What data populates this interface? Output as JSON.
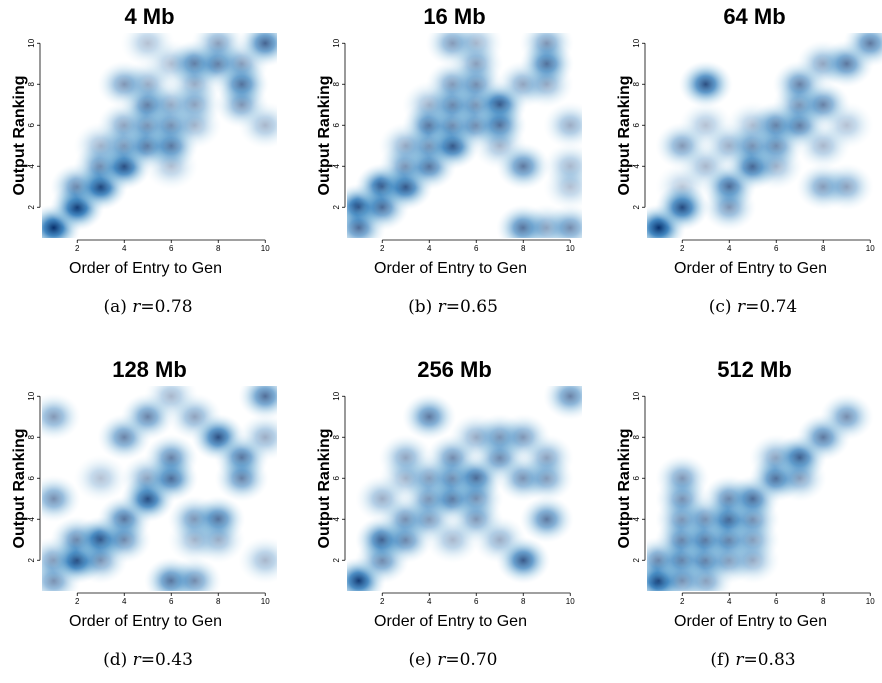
{
  "axis_labels": {
    "x": "Order of Entry to Gen",
    "y": "Output Ranking"
  },
  "chart_data": [
    {
      "type": "heatmap",
      "title": "4 Mb",
      "caption_prefix": "(a)",
      "caption_var": "r",
      "caption_value": "=0.78",
      "xlabel": "Order of Entry to Gen",
      "ylabel": "Output Ranking",
      "xlim": [
        0.5,
        10.5
      ],
      "ylim": [
        0.5,
        10.5
      ],
      "xticks": [
        2,
        4,
        6,
        8,
        10
      ],
      "yticks": [
        2,
        4,
        6,
        8,
        10
      ],
      "points": [
        [
          1,
          1,
          1.0
        ],
        [
          2,
          2,
          1.0
        ],
        [
          2,
          3,
          0.6
        ],
        [
          3,
          3,
          0.95
        ],
        [
          3,
          4,
          0.6
        ],
        [
          4,
          4,
          0.9
        ],
        [
          4,
          5,
          0.55
        ],
        [
          4,
          6,
          0.45
        ],
        [
          5,
          5,
          0.7
        ],
        [
          5,
          6,
          0.55
        ],
        [
          5,
          7,
          0.65
        ],
        [
          5,
          8,
          0.4
        ],
        [
          4,
          8,
          0.5
        ],
        [
          6,
          5,
          0.7
        ],
        [
          6,
          6,
          0.55
        ],
        [
          6,
          7,
          0.4
        ],
        [
          6,
          4,
          0.3
        ],
        [
          7,
          9,
          0.7
        ],
        [
          7,
          8,
          0.4
        ],
        [
          7,
          7,
          0.45
        ],
        [
          8,
          9,
          0.65
        ],
        [
          8,
          10,
          0.45
        ],
        [
          9,
          8,
          0.75
        ],
        [
          9,
          7,
          0.5
        ],
        [
          9,
          9,
          0.45
        ],
        [
          10,
          10,
          0.75
        ],
        [
          10,
          6,
          0.35
        ],
        [
          5,
          10,
          0.3
        ],
        [
          6,
          9,
          0.3
        ],
        [
          7,
          6,
          0.35
        ],
        [
          3,
          5,
          0.35
        ]
      ]
    },
    {
      "type": "heatmap",
      "title": "16 Mb",
      "caption_prefix": "(b)",
      "caption_var": "r",
      "caption_value": "=0.65",
      "xlabel": "Order of Entry to Gen",
      "ylabel": "Output Ranking",
      "xlim": [
        0.5,
        10.5
      ],
      "ylim": [
        0.5,
        10.5
      ],
      "xticks": [
        2,
        4,
        6,
        8,
        10
      ],
      "yticks": [
        2,
        4,
        6,
        8,
        10
      ],
      "points": [
        [
          1,
          2,
          0.95
        ],
        [
          1,
          1,
          0.7
        ],
        [
          2,
          3,
          0.9
        ],
        [
          2,
          2,
          0.7
        ],
        [
          3,
          3,
          0.85
        ],
        [
          3,
          4,
          0.55
        ],
        [
          4,
          4,
          0.7
        ],
        [
          4,
          5,
          0.6
        ],
        [
          4,
          6,
          0.7
        ],
        [
          5,
          5,
          0.85
        ],
        [
          5,
          6,
          0.6
        ],
        [
          5,
          7,
          0.65
        ],
        [
          5,
          8,
          0.5
        ],
        [
          5,
          10,
          0.5
        ],
        [
          6,
          6,
          0.6
        ],
        [
          6,
          7,
          0.55
        ],
        [
          6,
          8,
          0.55
        ],
        [
          6,
          10,
          0.35
        ],
        [
          7,
          7,
          0.85
        ],
        [
          7,
          6,
          0.7
        ],
        [
          7,
          5,
          0.35
        ],
        [
          8,
          4,
          0.65
        ],
        [
          8,
          8,
          0.45
        ],
        [
          8,
          1,
          0.7
        ],
        [
          9,
          9,
          0.75
        ],
        [
          9,
          10,
          0.5
        ],
        [
          9,
          8,
          0.4
        ],
        [
          9,
          1,
          0.45
        ],
        [
          10,
          6,
          0.4
        ],
        [
          10,
          4,
          0.35
        ],
        [
          10,
          3,
          0.3
        ],
        [
          10,
          1,
          0.55
        ],
        [
          3,
          5,
          0.4
        ],
        [
          6,
          9,
          0.45
        ],
        [
          4,
          7,
          0.35
        ]
      ]
    },
    {
      "type": "heatmap",
      "title": "64 Mb",
      "caption_prefix": "(c)",
      "caption_var": "r",
      "caption_value": "=0.74",
      "xlabel": "Order of Entry to Gen",
      "ylabel": "Output Ranking",
      "xlim": [
        0.5,
        10.5
      ],
      "ylim": [
        0.5,
        10.5
      ],
      "xticks": [
        2,
        4,
        6,
        8,
        10
      ],
      "yticks": [
        2,
        4,
        6,
        8,
        10
      ],
      "points": [
        [
          1,
          1,
          1.0
        ],
        [
          2,
          2,
          0.9
        ],
        [
          2,
          5,
          0.5
        ],
        [
          3,
          8,
          0.85
        ],
        [
          3,
          4,
          0.35
        ],
        [
          3,
          6,
          0.3
        ],
        [
          4,
          3,
          0.75
        ],
        [
          4,
          2,
          0.5
        ],
        [
          4,
          5,
          0.4
        ],
        [
          5,
          4,
          0.8
        ],
        [
          5,
          5,
          0.55
        ],
        [
          6,
          5,
          0.6
        ],
        [
          6,
          6,
          0.65
        ],
        [
          7,
          6,
          0.65
        ],
        [
          7,
          7,
          0.55
        ],
        [
          7,
          8,
          0.6
        ],
        [
          8,
          7,
          0.6
        ],
        [
          8,
          9,
          0.45
        ],
        [
          8,
          3,
          0.5
        ],
        [
          9,
          9,
          0.65
        ],
        [
          9,
          3,
          0.45
        ],
        [
          10,
          10,
          0.65
        ],
        [
          6,
          4,
          0.35
        ],
        [
          8,
          5,
          0.35
        ],
        [
          9,
          6,
          0.3
        ],
        [
          5,
          6,
          0.3
        ],
        [
          2,
          3,
          0.25
        ]
      ]
    },
    {
      "type": "heatmap",
      "title": "128 Mb",
      "caption_prefix": "(d)",
      "caption_var": "r",
      "caption_value": "=0.43",
      "xlabel": "Order of Entry to Gen",
      "ylabel": "Output Ranking",
      "xlim": [
        0.5,
        10.5
      ],
      "ylim": [
        0.5,
        10.5
      ],
      "xticks": [
        2,
        4,
        6,
        8,
        10
      ],
      "yticks": [
        2,
        4,
        6,
        8,
        10
      ],
      "points": [
        [
          1,
          1,
          0.55
        ],
        [
          1,
          2,
          0.5
        ],
        [
          1,
          5,
          0.55
        ],
        [
          1,
          9,
          0.5
        ],
        [
          2,
          2,
          0.95
        ],
        [
          2,
          3,
          0.6
        ],
        [
          3,
          3,
          0.9
        ],
        [
          3,
          2,
          0.5
        ],
        [
          4,
          4,
          0.7
        ],
        [
          4,
          3,
          0.55
        ],
        [
          4,
          8,
          0.6
        ],
        [
          5,
          5,
          0.9
        ],
        [
          5,
          9,
          0.6
        ],
        [
          5,
          6,
          0.45
        ],
        [
          6,
          6,
          0.75
        ],
        [
          6,
          7,
          0.6
        ],
        [
          6,
          1,
          0.7
        ],
        [
          7,
          1,
          0.55
        ],
        [
          7,
          4,
          0.55
        ],
        [
          7,
          9,
          0.45
        ],
        [
          8,
          8,
          0.85
        ],
        [
          8,
          4,
          0.7
        ],
        [
          8,
          3,
          0.4
        ],
        [
          9,
          7,
          0.7
        ],
        [
          9,
          6,
          0.6
        ],
        [
          10,
          10,
          0.7
        ],
        [
          10,
          8,
          0.4
        ],
        [
          10,
          2,
          0.35
        ],
        [
          3,
          6,
          0.3
        ],
        [
          6,
          10,
          0.35
        ],
        [
          7,
          3,
          0.35
        ]
      ]
    },
    {
      "type": "heatmap",
      "title": "256 Mb",
      "caption_prefix": "(e)",
      "caption_var": "r",
      "caption_value": "=0.70",
      "xlabel": "Order of Entry to Gen",
      "ylabel": "Output Ranking",
      "xlim": [
        0.5,
        10.5
      ],
      "ylim": [
        0.5,
        10.5
      ],
      "xticks": [
        2,
        4,
        6,
        8,
        10
      ],
      "yticks": [
        2,
        4,
        6,
        8,
        10
      ],
      "points": [
        [
          1,
          1,
          0.95
        ],
        [
          2,
          2,
          0.6
        ],
        [
          2,
          3,
          0.8
        ],
        [
          3,
          3,
          0.6
        ],
        [
          3,
          4,
          0.55
        ],
        [
          4,
          4,
          0.5
        ],
        [
          4,
          5,
          0.55
        ],
        [
          4,
          9,
          0.65
        ],
        [
          4,
          6,
          0.5
        ],
        [
          5,
          5,
          0.7
        ],
        [
          5,
          6,
          0.6
        ],
        [
          5,
          7,
          0.55
        ],
        [
          6,
          6,
          0.75
        ],
        [
          6,
          5,
          0.55
        ],
        [
          6,
          4,
          0.5
        ],
        [
          7,
          7,
          0.6
        ],
        [
          7,
          8,
          0.55
        ],
        [
          7,
          3,
          0.4
        ],
        [
          8,
          2,
          0.8
        ],
        [
          8,
          6,
          0.55
        ],
        [
          8,
          8,
          0.5
        ],
        [
          9,
          4,
          0.65
        ],
        [
          9,
          6,
          0.5
        ],
        [
          9,
          7,
          0.45
        ],
        [
          10,
          10,
          0.6
        ],
        [
          3,
          7,
          0.45
        ],
        [
          2,
          5,
          0.4
        ],
        [
          5,
          3,
          0.35
        ],
        [
          6,
          8,
          0.4
        ],
        [
          3,
          6,
          0.35
        ]
      ]
    },
    {
      "type": "heatmap",
      "title": "512 Mb",
      "caption_prefix": "(f)",
      "caption_var": "r",
      "caption_value": "=0.83",
      "xlabel": "Order of Entry to Gen",
      "ylabel": "Output Ranking",
      "xlim": [
        0.5,
        10.5
      ],
      "ylim": [
        0.5,
        10.5
      ],
      "xticks": [
        2,
        4,
        6,
        8,
        10
      ],
      "yticks": [
        2,
        4,
        6,
        8,
        10
      ],
      "points": [
        [
          1,
          1,
          1.0
        ],
        [
          1,
          2,
          0.6
        ],
        [
          2,
          2,
          0.7
        ],
        [
          2,
          3,
          0.65
        ],
        [
          2,
          4,
          0.55
        ],
        [
          2,
          5,
          0.55
        ],
        [
          2,
          6,
          0.5
        ],
        [
          3,
          1,
          0.5
        ],
        [
          3,
          2,
          0.65
        ],
        [
          3,
          3,
          0.7
        ],
        [
          3,
          4,
          0.55
        ],
        [
          4,
          2,
          0.5
        ],
        [
          4,
          3,
          0.65
        ],
        [
          4,
          4,
          0.8
        ],
        [
          4,
          5,
          0.6
        ],
        [
          5,
          3,
          0.5
        ],
        [
          5,
          4,
          0.55
        ],
        [
          5,
          5,
          0.7
        ],
        [
          5,
          2,
          0.4
        ],
        [
          6,
          6,
          0.75
        ],
        [
          6,
          7,
          0.45
        ],
        [
          7,
          7,
          0.8
        ],
        [
          7,
          6,
          0.45
        ],
        [
          8,
          8,
          0.65
        ],
        [
          9,
          9,
          0.55
        ],
        [
          2,
          1,
          0.5
        ]
      ]
    }
  ]
}
